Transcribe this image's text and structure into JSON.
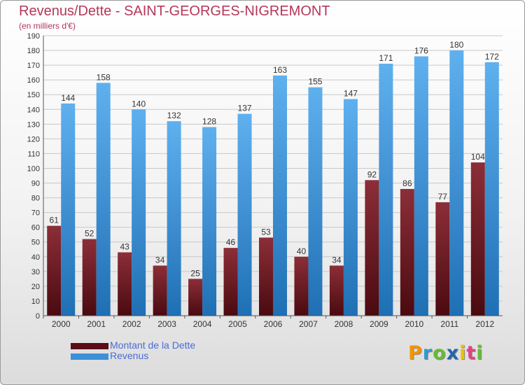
{
  "header": {
    "title": "Revenus/Dette - SAINT-GEORGES-NIGREMONT",
    "subtitle": "(en milliers d'€)"
  },
  "colors": {
    "title": "#b5355a",
    "debt_top": "#8c2e38",
    "debt_bottom": "#4a0a10",
    "revenue_top": "#5fb0ef",
    "revenue_bottom": "#1f6fb4",
    "grid": "#c8c8c8",
    "legend_text": "#4a6bd6"
  },
  "logo": {
    "letters": [
      "P",
      "r",
      "o",
      "x",
      "i",
      "t",
      "i"
    ],
    "colors": [
      "#f29400",
      "#3399cc",
      "#66bb33",
      "#2266aa",
      "#e8c200",
      "#dd4488",
      "#66bb33"
    ]
  },
  "legend": {
    "items": [
      {
        "label": "Montant de la Dette",
        "color": "#5a0d14"
      },
      {
        "label": "Revenus",
        "color": "#3d8fd8"
      }
    ]
  },
  "chart_data": {
    "type": "bar",
    "title": "Revenus/Dette - SAINT-GEORGES-NIGREMONT",
    "ylabel": "(en milliers d'€)",
    "categories": [
      "2000",
      "2001",
      "2002",
      "2003",
      "2004",
      "2005",
      "2006",
      "2007",
      "2008",
      "2009",
      "2010",
      "2011",
      "2012"
    ],
    "series": [
      {
        "name": "Montant de la Dette",
        "values": [
          61,
          52,
          43,
          34,
          25,
          46,
          53,
          40,
          34,
          92,
          86,
          77,
          104
        ]
      },
      {
        "name": "Revenus",
        "values": [
          144,
          158,
          140,
          132,
          128,
          137,
          163,
          155,
          147,
          171,
          176,
          180,
          172
        ]
      }
    ],
    "ylim": [
      0,
      190
    ],
    "yticks": [
      0,
      10,
      20,
      30,
      40,
      50,
      60,
      70,
      80,
      90,
      100,
      110,
      120,
      130,
      140,
      150,
      160,
      170,
      180,
      190
    ],
    "grid": true,
    "legend_position": "bottom-left"
  }
}
